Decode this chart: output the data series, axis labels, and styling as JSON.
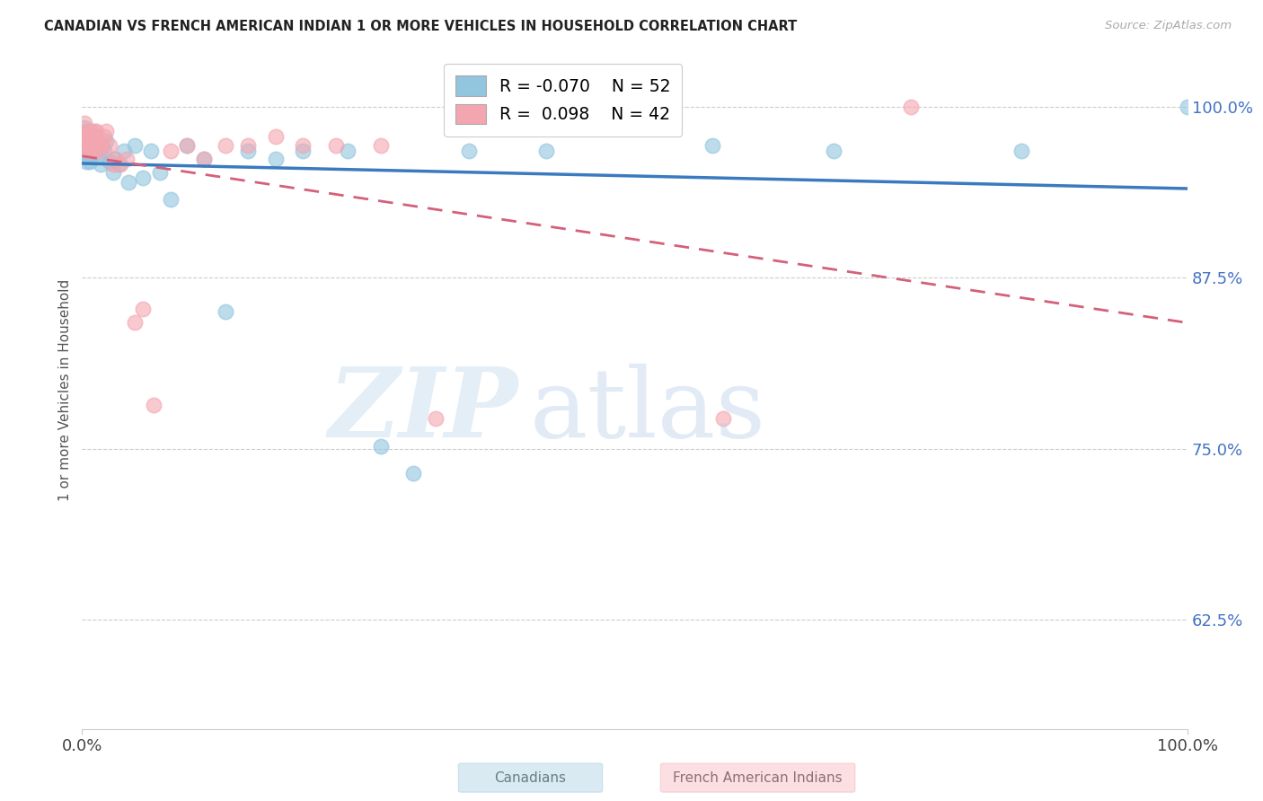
{
  "title": "CANADIAN VS FRENCH AMERICAN INDIAN 1 OR MORE VEHICLES IN HOUSEHOLD CORRELATION CHART",
  "source": "Source: ZipAtlas.com",
  "ylabel": "1 or more Vehicles in Household",
  "ytick_labels": [
    "100.0%",
    "87.5%",
    "75.0%",
    "62.5%"
  ],
  "ytick_values": [
    1.0,
    0.875,
    0.75,
    0.625
  ],
  "xmin": 0.0,
  "xmax": 1.0,
  "ymin": 0.545,
  "ymax": 1.04,
  "legend_blue_R": "-0.070",
  "legend_blue_N": "52",
  "legend_pink_R": "0.098",
  "legend_pink_N": "42",
  "legend_label_blue": "Canadians",
  "legend_label_pink": "French American Indians",
  "blue_color": "#92c5de",
  "pink_color": "#f4a6b0",
  "trendline_blue": "#3a7abf",
  "trendline_pink": "#d4607a",
  "blue_scatter_x": [
    0.001,
    0.002,
    0.003,
    0.003,
    0.004,
    0.004,
    0.005,
    0.005,
    0.006,
    0.006,
    0.007,
    0.007,
    0.008,
    0.008,
    0.009,
    0.01,
    0.011,
    0.012,
    0.013,
    0.014,
    0.015,
    0.016,
    0.017,
    0.018,
    0.02,
    0.022,
    0.025,
    0.028,
    0.03,
    0.033,
    0.038,
    0.042,
    0.048,
    0.055,
    0.062,
    0.07,
    0.08,
    0.095,
    0.11,
    0.13,
    0.15,
    0.175,
    0.2,
    0.24,
    0.27,
    0.3,
    0.35,
    0.42,
    0.57,
    0.68,
    0.85,
    1.0
  ],
  "blue_scatter_y": [
    0.97,
    0.985,
    0.975,
    0.965,
    0.98,
    0.96,
    0.975,
    0.97,
    0.972,
    0.965,
    0.978,
    0.96,
    0.982,
    0.965,
    0.972,
    0.968,
    0.975,
    0.97,
    0.968,
    0.972,
    0.965,
    0.97,
    0.958,
    0.972,
    0.968,
    0.975,
    0.96,
    0.952,
    0.962,
    0.958,
    0.968,
    0.945,
    0.972,
    0.948,
    0.968,
    0.952,
    0.932,
    0.972,
    0.962,
    0.85,
    0.968,
    0.962,
    0.968,
    0.968,
    0.752,
    0.732,
    0.968,
    0.968,
    0.972,
    0.968,
    0.968,
    1.0
  ],
  "pink_scatter_x": [
    0.001,
    0.002,
    0.003,
    0.003,
    0.004,
    0.004,
    0.005,
    0.005,
    0.006,
    0.007,
    0.007,
    0.008,
    0.009,
    0.01,
    0.011,
    0.012,
    0.013,
    0.015,
    0.016,
    0.018,
    0.02,
    0.022,
    0.025,
    0.028,
    0.03,
    0.035,
    0.04,
    0.048,
    0.055,
    0.065,
    0.08,
    0.095,
    0.11,
    0.13,
    0.15,
    0.175,
    0.2,
    0.23,
    0.27,
    0.32,
    0.58,
    0.75
  ],
  "pink_scatter_y": [
    0.978,
    0.988,
    0.98,
    0.975,
    0.982,
    0.97,
    0.978,
    0.968,
    0.975,
    0.982,
    0.968,
    0.975,
    0.972,
    0.968,
    0.982,
    0.978,
    0.982,
    0.972,
    0.968,
    0.972,
    0.978,
    0.982,
    0.972,
    0.958,
    0.962,
    0.958,
    0.962,
    0.842,
    0.852,
    0.782,
    0.968,
    0.972,
    0.962,
    0.972,
    0.972,
    0.978,
    0.972,
    0.972,
    0.972,
    0.772,
    0.772,
    1.0
  ]
}
